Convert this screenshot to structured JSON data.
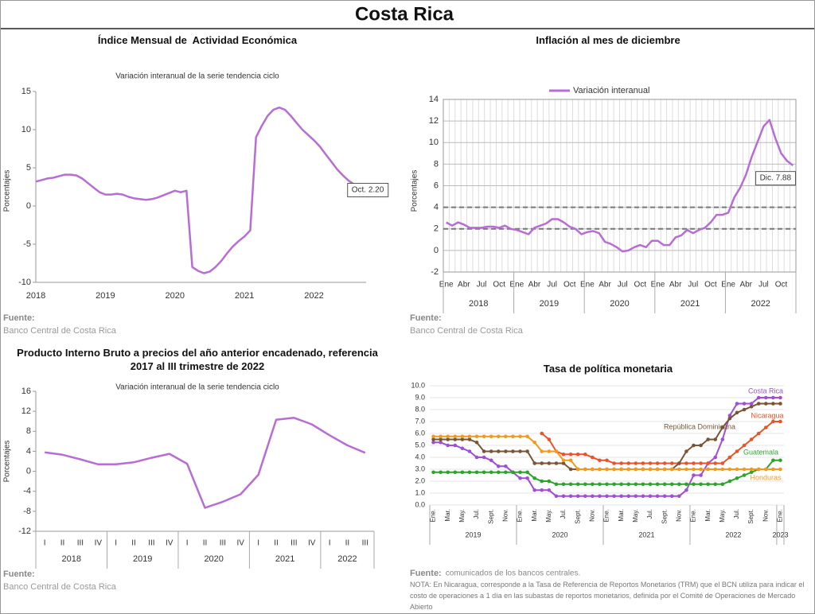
{
  "title": "Costa Rica",
  "chart_data": [
    {
      "type": "line",
      "title": "Índice Mensual de  Actividad Económica",
      "subtitle": "Variación interanual de la serie tendencia ciclo",
      "y_label": "Porcentajes",
      "categories": [
        "2018",
        null,
        null,
        null,
        null,
        null,
        null,
        null,
        null,
        null,
        null,
        null,
        "2019",
        null,
        null,
        null,
        null,
        null,
        null,
        null,
        null,
        null,
        null,
        null,
        "2020",
        null,
        null,
        null,
        null,
        null,
        null,
        null,
        null,
        null,
        null,
        null,
        "2021",
        null,
        null,
        null,
        null,
        null,
        null,
        null,
        null,
        null,
        null,
        null,
        "2022",
        null,
        null,
        null,
        null,
        null,
        null,
        null,
        null,
        null
      ],
      "values": [
        3.2,
        3.4,
        3.6,
        3.7,
        3.9,
        4.1,
        4.1,
        4.0,
        3.6,
        3.0,
        2.4,
        1.8,
        1.5,
        1.5,
        1.6,
        1.5,
        1.2,
        1.0,
        0.9,
        0.8,
        0.9,
        1.1,
        1.4,
        1.7,
        2.0,
        1.8,
        2.0,
        -8.0,
        -8.5,
        -8.8,
        -8.6,
        -8.0,
        -7.2,
        -6.2,
        -5.3,
        -4.6,
        -4.0,
        -3.2,
        9.0,
        10.5,
        11.8,
        12.6,
        12.9,
        12.6,
        11.8,
        10.9,
        10.0,
        9.3,
        8.6,
        7.8,
        6.8,
        5.8,
        4.8,
        4.0,
        3.3,
        2.8,
        2.5,
        2.2
      ],
      "color": "#b76dd4",
      "ylim": [
        -10,
        15
      ],
      "yticks": [
        -10,
        -5,
        0,
        5,
        10,
        15
      ],
      "grid": false,
      "annotation": "Oct. 2.20",
      "source_label": "Fuente:",
      "source": "Banco Central de Costa Rica"
    },
    {
      "type": "line",
      "title": "Inflación al mes de diciembre",
      "y_label": "Porcentajes",
      "categories": [
        "Ene",
        null,
        null,
        "Abr",
        null,
        null,
        "Jul",
        null,
        null,
        "Oct",
        null,
        null,
        "Ene",
        null,
        null,
        "Abr",
        null,
        null,
        "Jul",
        null,
        null,
        "Oct",
        null,
        null,
        "Ene",
        null,
        null,
        "Abr",
        null,
        null,
        "Jul",
        null,
        null,
        "Oct",
        null,
        null,
        "Ene",
        null,
        null,
        "Abr",
        null,
        null,
        "Jul",
        null,
        null,
        "Oct",
        null,
        null,
        "Ene",
        null,
        null,
        "Abr",
        null,
        null,
        "Jul",
        null,
        null,
        "Oct",
        null,
        null
      ],
      "x_groups": [
        "2018",
        "2019",
        "2020",
        "2021",
        "2022"
      ],
      "series": [
        {
          "name": "Variación interanual",
          "color": "#b76dd4",
          "values": [
            2.6,
            2.3,
            2.6,
            2.4,
            2.1,
            2.1,
            2.1,
            2.2,
            2.2,
            2.1,
            2.3,
            2.0,
            1.9,
            1.7,
            1.5,
            2.1,
            2.3,
            2.5,
            2.9,
            2.9,
            2.6,
            2.2,
            2.0,
            1.5,
            1.7,
            1.8,
            1.6,
            0.8,
            0.6,
            0.3,
            -0.1,
            0.0,
            0.3,
            0.5,
            0.3,
            0.9,
            0.9,
            0.5,
            0.5,
            1.2,
            1.4,
            1.9,
            1.6,
            1.9,
            2.1,
            2.6,
            3.3,
            3.3,
            3.5,
            4.9,
            5.8,
            7.0,
            8.7,
            10.1,
            11.5,
            12.1,
            10.4,
            9.0,
            8.3,
            7.88
          ]
        }
      ],
      "reference_lines": [
        2,
        4
      ],
      "ylim": [
        -2,
        14
      ],
      "yticks": [
        -2,
        0,
        2,
        4,
        6,
        8,
        10,
        12,
        14
      ],
      "grid": true,
      "annotation": "Dic. 7.88",
      "source_label": "Fuente:",
      "source": "Banco Central de Costa Rica"
    },
    {
      "type": "line",
      "title": "Producto Interno Bruto a precios del año anterior encadenado, referencia 2017 al III trimestre de 2022",
      "subtitle": "Variación interanual de la serie tendencia ciclo",
      "y_label": "Porcentajes",
      "categories": [
        "I",
        "II",
        "III",
        "IV",
        "I",
        "II",
        "III",
        "IV",
        "I",
        "II",
        "III",
        "IV",
        "I",
        "II",
        "III",
        "IV",
        "I",
        "II",
        "III"
      ],
      "x_groups": [
        "2018",
        "2019",
        "2020",
        "2021",
        "2022"
      ],
      "values": [
        3.8,
        3.3,
        2.4,
        1.4,
        1.4,
        1.8,
        2.7,
        3.5,
        1.5,
        -7.3,
        -6.1,
        -4.6,
        -0.7,
        10.3,
        10.7,
        9.4,
        7.2,
        5.2,
        3.7
      ],
      "color": "#b76dd4",
      "ylim": [
        -12,
        16
      ],
      "yticks": [
        -12,
        -8,
        -4,
        0,
        4,
        8,
        12,
        16
      ],
      "grid": false,
      "source_label": "Fuente:",
      "source": "Banco Central de Costa Rica"
    },
    {
      "type": "line",
      "title": "Tasa de política monetaria",
      "categories": [
        "Ene.",
        null,
        "Mar.",
        null,
        "May.",
        null,
        "Jul.",
        null,
        "Sept.",
        null,
        "Nov.",
        null,
        "Ene.",
        null,
        "Mar.",
        null,
        "May.",
        null,
        "Jul.",
        null,
        "Sept.",
        null,
        "Nov.",
        null,
        "Ene.",
        null,
        "Mar.",
        null,
        "May.",
        null,
        "Jul.",
        null,
        "Sept.",
        null,
        "Nov.",
        null,
        "Ene.",
        null,
        "Mar.",
        null,
        "May.",
        null,
        "Jul.",
        null,
        "Sept.",
        null,
        "Nov.",
        null,
        "Ene."
      ],
      "x_groups": [
        "2019",
        "2020",
        "2021",
        "2022",
        "2023"
      ],
      "series": [
        {
          "name": "Costa Rica",
          "color": "#a04fd2",
          "values": [
            5.25,
            5.25,
            5.0,
            5.0,
            4.75,
            4.5,
            4.0,
            4.0,
            3.75,
            3.25,
            3.25,
            2.75,
            2.25,
            2.25,
            1.25,
            1.25,
            1.25,
            0.75,
            0.75,
            0.75,
            0.75,
            0.75,
            0.75,
            0.75,
            0.75,
            0.75,
            0.75,
            0.75,
            0.75,
            0.75,
            0.75,
            0.75,
            0.75,
            0.75,
            0.75,
            1.25,
            2.5,
            2.5,
            3.5,
            4.0,
            5.5,
            7.5,
            8.5,
            8.5,
            8.5,
            9.0,
            9.0,
            9.0,
            9.0
          ]
        },
        {
          "name": "Nicaragua",
          "color": "#e8532a",
          "values": [
            null,
            null,
            null,
            null,
            null,
            null,
            null,
            null,
            null,
            null,
            null,
            null,
            null,
            null,
            null,
            6.0,
            5.5,
            4.5,
            4.25,
            4.25,
            4.25,
            4.25,
            4.0,
            3.75,
            3.75,
            3.5,
            3.5,
            3.5,
            3.5,
            3.5,
            3.5,
            3.5,
            3.5,
            3.5,
            3.5,
            3.5,
            3.5,
            3.5,
            3.5,
            3.5,
            3.5,
            4.0,
            4.5,
            5.0,
            5.5,
            6.0,
            6.5,
            7.0,
            7.0
          ]
        },
        {
          "name": "República Dominicana",
          "color": "#7a5535",
          "values": [
            5.5,
            5.5,
            5.5,
            5.5,
            5.5,
            5.5,
            5.25,
            4.5,
            4.5,
            4.5,
            4.5,
            4.5,
            4.5,
            4.5,
            3.5,
            3.5,
            3.5,
            3.5,
            3.5,
            3.0,
            3.0,
            3.0,
            3.0,
            3.0,
            3.0,
            3.0,
            3.0,
            3.0,
            3.0,
            3.0,
            3.0,
            3.0,
            3.0,
            3.0,
            3.5,
            4.5,
            5.0,
            5.0,
            5.5,
            5.5,
            6.5,
            7.25,
            7.75,
            8.0,
            8.25,
            8.5,
            8.5,
            8.5,
            8.5
          ]
        },
        {
          "name": "Guatemala",
          "color": "#2aa52a",
          "values": [
            2.75,
            2.75,
            2.75,
            2.75,
            2.75,
            2.75,
            2.75,
            2.75,
            2.75,
            2.75,
            2.75,
            2.75,
            2.75,
            2.75,
            2.25,
            2.0,
            2.0,
            1.75,
            1.75,
            1.75,
            1.75,
            1.75,
            1.75,
            1.75,
            1.75,
            1.75,
            1.75,
            1.75,
            1.75,
            1.75,
            1.75,
            1.75,
            1.75,
            1.75,
            1.75,
            1.75,
            1.75,
            1.75,
            1.75,
            1.75,
            1.75,
            2.0,
            2.25,
            2.5,
            2.75,
            3.0,
            3.0,
            3.75,
            3.75
          ]
        },
        {
          "name": "Honduras",
          "color": "#f39a1e",
          "values": [
            5.75,
            5.75,
            5.75,
            5.75,
            5.75,
            5.75,
            5.75,
            5.75,
            5.75,
            5.75,
            5.75,
            5.75,
            5.75,
            5.75,
            5.25,
            4.5,
            4.5,
            4.5,
            3.75,
            3.75,
            3.0,
            3.0,
            3.0,
            3.0,
            3.0,
            3.0,
            3.0,
            3.0,
            3.0,
            3.0,
            3.0,
            3.0,
            3.0,
            3.0,
            3.0,
            3.0,
            3.0,
            3.0,
            3.0,
            3.0,
            3.0,
            3.0,
            3.0,
            3.0,
            3.0,
            3.0,
            3.0,
            3.0,
            3.0
          ]
        }
      ],
      "markers": true,
      "ylim": [
        0,
        10
      ],
      "yticks": [
        {
          "value": 0,
          "label": "0.0"
        },
        {
          "value": 1,
          "label": "1.0"
        },
        {
          "value": 2,
          "label": "2.0"
        },
        {
          "value": 3,
          "label": "3.0"
        },
        {
          "value": 4,
          "label": "4.0"
        },
        {
          "value": 5,
          "label": "5.0"
        },
        {
          "value": 6,
          "label": "6.0"
        },
        {
          "value": 7,
          "label": "7.0"
        },
        {
          "value": 8,
          "label": "8.0"
        },
        {
          "value": 9,
          "label": "9.0"
        },
        {
          "value": 10,
          "label": "10.0"
        }
      ],
      "grid": true,
      "source_label": "Fuente:",
      "source": "comunicados de los bancos centrales.",
      "note": "NOTA: En Nicaragua, corresponde a la Tasa de Referencia de Reportos Monetarios (TRM) que el BCN utiliza para indicar el costo de operaciones a 1 día en las subastas de reportos monetarios, definida por el Comité de Operaciones de Mercado Abierto"
    }
  ]
}
